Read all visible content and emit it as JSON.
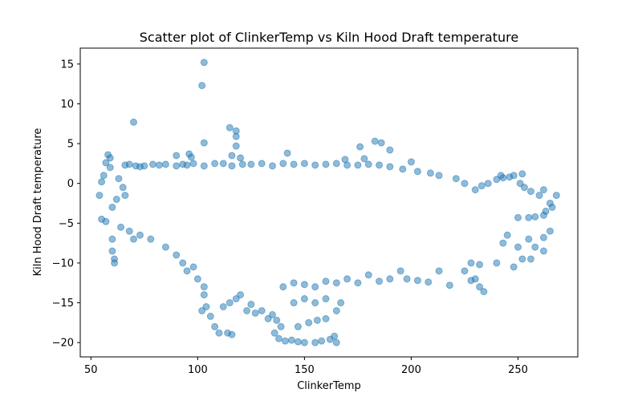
{
  "chart_data": {
    "type": "scatter",
    "title": "Scatter plot of ClinkerTemp vs Kiln Hood Draft temperature",
    "xlabel": "ClinkerTemp",
    "ylabel": "Kiln Hood Draft temperature",
    "xlim": [
      45,
      278
    ],
    "ylim": [
      -21.8,
      17
    ],
    "xticks": [
      50,
      100,
      150,
      200,
      250
    ],
    "yticks": [
      -20,
      -15,
      -10,
      -5,
      0,
      5,
      10,
      15
    ],
    "color": "#1f77b4",
    "alpha": 0.5,
    "grid": false,
    "series": [
      {
        "points": [
          [
            103,
            15.2
          ],
          [
            102,
            12.3
          ],
          [
            70,
            7.7
          ],
          [
            115,
            7.0
          ],
          [
            118,
            6.6
          ],
          [
            118,
            5.9
          ],
          [
            103,
            5.1
          ],
          [
            118,
            4.7
          ],
          [
            116,
            3.5
          ],
          [
            120,
            3.2
          ],
          [
            183,
            5.3
          ],
          [
            186,
            5.1
          ],
          [
            176,
            4.6
          ],
          [
            190,
            4.2
          ],
          [
            142,
            3.8
          ],
          [
            200,
            2.7
          ],
          [
            169,
            3.0
          ],
          [
            178,
            3.1
          ],
          [
            58,
            3.6
          ],
          [
            59,
            3.2
          ],
          [
            57,
            2.6
          ],
          [
            59,
            2.0
          ],
          [
            56,
            1.0
          ],
          [
            55,
            0.2
          ],
          [
            54,
            -1.5
          ],
          [
            55,
            -4.5
          ],
          [
            57,
            -4.8
          ],
          [
            60,
            -7.0
          ],
          [
            60,
            -8.5
          ],
          [
            61,
            -9.5
          ],
          [
            61,
            -10.0
          ],
          [
            66,
            2.3
          ],
          [
            68,
            2.4
          ],
          [
            71,
            2.2
          ],
          [
            73,
            2.1
          ],
          [
            75,
            2.2
          ],
          [
            79,
            2.4
          ],
          [
            82,
            2.3
          ],
          [
            85,
            2.4
          ],
          [
            90,
            2.2
          ],
          [
            93,
            2.4
          ],
          [
            95,
            2.3
          ],
          [
            98,
            2.5
          ],
          [
            103,
            2.2
          ],
          [
            108,
            2.5
          ],
          [
            112,
            2.5
          ],
          [
            116,
            2.2
          ],
          [
            121,
            2.4
          ],
          [
            90,
            3.5
          ],
          [
            96,
            3.7
          ],
          [
            97,
            3.3
          ],
          [
            63,
            0.6
          ],
          [
            65,
            -0.5
          ],
          [
            66,
            -1.5
          ],
          [
            60,
            -3.0
          ],
          [
            62,
            -2.0
          ],
          [
            64,
            -5.5
          ],
          [
            68,
            -6.0
          ],
          [
            70,
            -7.0
          ],
          [
            73,
            -6.5
          ],
          [
            78,
            -7.0
          ],
          [
            85,
            -8.0
          ],
          [
            90,
            -9.0
          ],
          [
            93,
            -10.0
          ],
          [
            95,
            -11.0
          ],
          [
            98,
            -10.5
          ],
          [
            100,
            -12.0
          ],
          [
            103,
            -13.0
          ],
          [
            103,
            -14.0
          ],
          [
            102,
            -16.0
          ],
          [
            104,
            -15.5
          ],
          [
            106,
            -16.7
          ],
          [
            108,
            -18.0
          ],
          [
            110,
            -18.8
          ],
          [
            114,
            -18.8
          ],
          [
            116,
            -19.0
          ],
          [
            112,
            -15.5
          ],
          [
            115,
            -15.0
          ],
          [
            118,
            -14.5
          ],
          [
            120,
            -14.0
          ],
          [
            123,
            -16.0
          ],
          [
            125,
            -15.2
          ],
          [
            127,
            -16.3
          ],
          [
            130,
            -16.0
          ],
          [
            133,
            -17.0
          ],
          [
            135,
            -16.5
          ],
          [
            137,
            -17.2
          ],
          [
            139,
            -18.0
          ],
          [
            136,
            -18.8
          ],
          [
            138,
            -19.5
          ],
          [
            141,
            -19.8
          ],
          [
            144,
            -19.7
          ],
          [
            147,
            -19.9
          ],
          [
            150,
            -20.0
          ],
          [
            155,
            -20.0
          ],
          [
            158,
            -19.8
          ],
          [
            162,
            -19.6
          ],
          [
            165,
            -20.0
          ],
          [
            164,
            -19.2
          ],
          [
            147,
            -18.0
          ],
          [
            152,
            -17.5
          ],
          [
            156,
            -17.2
          ],
          [
            160,
            -17.0
          ],
          [
            145,
            -15.0
          ],
          [
            150,
            -14.5
          ],
          [
            155,
            -15.0
          ],
          [
            160,
            -14.5
          ],
          [
            165,
            -16.0
          ],
          [
            167,
            -15.0
          ],
          [
            140,
            -13.0
          ],
          [
            145,
            -12.5
          ],
          [
            150,
            -12.7
          ],
          [
            155,
            -13.0
          ],
          [
            160,
            -12.3
          ],
          [
            165,
            -12.5
          ],
          [
            170,
            -12.0
          ],
          [
            175,
            -12.5
          ],
          [
            180,
            -11.5
          ],
          [
            185,
            -12.3
          ],
          [
            190,
            -12.0
          ],
          [
            195,
            -11.0
          ],
          [
            198,
            -12.0
          ],
          [
            203,
            -12.2
          ],
          [
            208,
            -12.4
          ],
          [
            213,
            -11.0
          ],
          [
            218,
            -12.8
          ],
          [
            225,
            -11.0
          ],
          [
            228,
            -12.2
          ],
          [
            230,
            -12.0
          ],
          [
            232,
            -13.0
          ],
          [
            234,
            -13.6
          ],
          [
            228,
            -10.0
          ],
          [
            232,
            -10.2
          ],
          [
            240,
            -10.0
          ],
          [
            248,
            -10.5
          ],
          [
            252,
            -9.5
          ],
          [
            256,
            -9.5
          ],
          [
            262,
            -8.5
          ],
          [
            258,
            -8.0
          ],
          [
            250,
            -8.0
          ],
          [
            243,
            -7.5
          ],
          [
            245,
            -6.5
          ],
          [
            255,
            -7.0
          ],
          [
            262,
            -6.8
          ],
          [
            265,
            -6.0
          ],
          [
            268,
            -1.5
          ],
          [
            265,
            -2.5
          ],
          [
            263,
            -3.5
          ],
          [
            262,
            -4.0
          ],
          [
            258,
            -4.2
          ],
          [
            255,
            -4.3
          ],
          [
            250,
            -4.3
          ],
          [
            266,
            -3.0
          ],
          [
            262,
            -0.8
          ],
          [
            260,
            -1.5
          ],
          [
            256,
            -1.0
          ],
          [
            253,
            -0.5
          ],
          [
            251,
            0.0
          ],
          [
            248,
            1.0
          ],
          [
            243,
            0.7
          ],
          [
            240,
            0.5
          ],
          [
            236,
            0.0
          ],
          [
            233,
            -0.3
          ],
          [
            230,
            -0.8
          ],
          [
            225,
            0.0
          ],
          [
            221,
            0.6
          ],
          [
            213,
            1.0
          ],
          [
            209,
            1.3
          ],
          [
            203,
            1.5
          ],
          [
            196,
            1.8
          ],
          [
            190,
            2.1
          ],
          [
            185,
            2.3
          ],
          [
            180,
            2.4
          ],
          [
            175,
            2.3
          ],
          [
            170,
            2.3
          ],
          [
            165,
            2.5
          ],
          [
            160,
            2.4
          ],
          [
            155,
            2.3
          ],
          [
            150,
            2.5
          ],
          [
            145,
            2.4
          ],
          [
            140,
            2.5
          ],
          [
            135,
            2.2
          ],
          [
            130,
            2.5
          ],
          [
            125,
            2.4
          ],
          [
            242,
            1.0
          ],
          [
            246,
            0.8
          ],
          [
            252,
            1.2
          ]
        ]
      }
    ]
  }
}
